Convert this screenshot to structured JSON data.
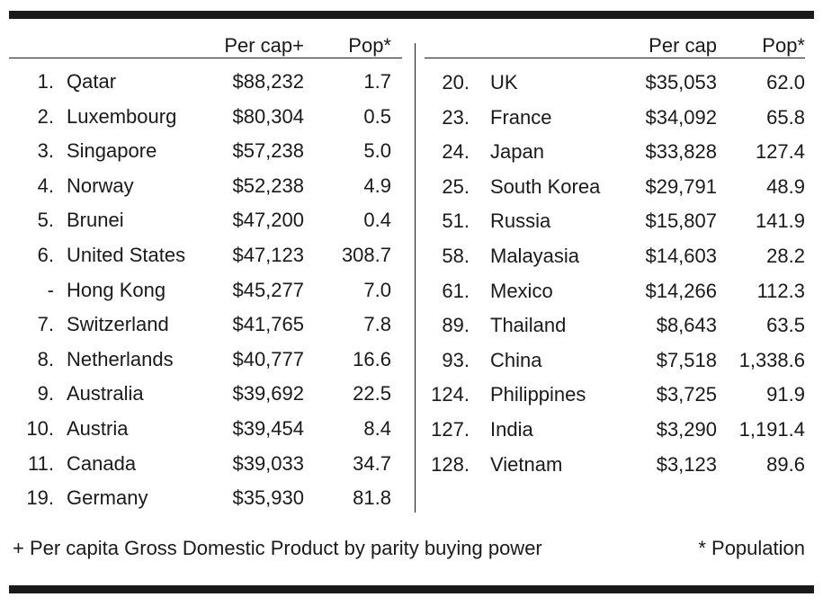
{
  "left_table": {
    "header": {
      "per_cap": "Per cap+",
      "pop": "Pop*"
    },
    "rows": [
      {
        "rank": "1.",
        "country": "Qatar",
        "per_cap": "$88,232",
        "pop": "1.7"
      },
      {
        "rank": "2.",
        "country": "Luxembourg",
        "per_cap": "$80,304",
        "pop": "0.5"
      },
      {
        "rank": "3.",
        "country": "Singapore",
        "per_cap": "$57,238",
        "pop": "5.0"
      },
      {
        "rank": "4.",
        "country": "Norway",
        "per_cap": "$52,238",
        "pop": "4.9"
      },
      {
        "rank": "5.",
        "country": "Brunei",
        "per_cap": "$47,200",
        "pop": "0.4"
      },
      {
        "rank": "6.",
        "country": "United States",
        "per_cap": "$47,123",
        "pop": "308.7"
      },
      {
        "rank": "-",
        "country": "Hong Kong",
        "per_cap": "$45,277",
        "pop": "7.0"
      },
      {
        "rank": "7.",
        "country": "Switzerland",
        "per_cap": "$41,765",
        "pop": "7.8"
      },
      {
        "rank": "8.",
        "country": "Netherlands",
        "per_cap": "$40,777",
        "pop": "16.6"
      },
      {
        "rank": "9.",
        "country": "Australia",
        "per_cap": "$39,692",
        "pop": "22.5"
      },
      {
        "rank": "10.",
        "country": "Austria",
        "per_cap": "$39,454",
        "pop": "8.4"
      },
      {
        "rank": "11.",
        "country": "Canada",
        "per_cap": "$39,033",
        "pop": "34.7"
      },
      {
        "rank": "19.",
        "country": "Germany",
        "per_cap": "$35,930",
        "pop": "81.8"
      }
    ]
  },
  "right_table": {
    "header": {
      "per_cap": "Per cap",
      "pop": "Pop*"
    },
    "rows": [
      {
        "rank": "20.",
        "country": "UK",
        "per_cap": "$35,053",
        "pop": "62.0"
      },
      {
        "rank": "23.",
        "country": "France",
        "per_cap": "$34,092",
        "pop": "65.8"
      },
      {
        "rank": "24.",
        "country": "Japan",
        "per_cap": "$33,828",
        "pop": "127.4"
      },
      {
        "rank": "25.",
        "country": "South Korea",
        "per_cap": "$29,791",
        "pop": "48.9"
      },
      {
        "rank": "51.",
        "country": "Russia",
        "per_cap": "$15,807",
        "pop": "141.9"
      },
      {
        "rank": "58.",
        "country": "Malayasia",
        "per_cap": "$14,603",
        "pop": "28.2"
      },
      {
        "rank": "61.",
        "country": "Mexico",
        "per_cap": "$14,266",
        "pop": "112.3"
      },
      {
        "rank": "89.",
        "country": "Thailand",
        "per_cap": "$8,643",
        "pop": "63.5"
      },
      {
        "rank": "93.",
        "country": "China",
        "per_cap": "$7,518",
        "pop": "1,338.6"
      },
      {
        "rank": "124.",
        "country": "Philippines",
        "per_cap": "$3,725",
        "pop": "91.9"
      },
      {
        "rank": "127.",
        "country": "India",
        "per_cap": "$3,290",
        "pop": "1,191.4"
      },
      {
        "rank": "128.",
        "country": "Vietnam",
        "per_cap": "$3,123",
        "pop": "89.6"
      }
    ]
  },
  "footnotes": {
    "per_cap": "+ Per capita Gross Domestic Product by parity buying power",
    "pop": "* Population"
  }
}
